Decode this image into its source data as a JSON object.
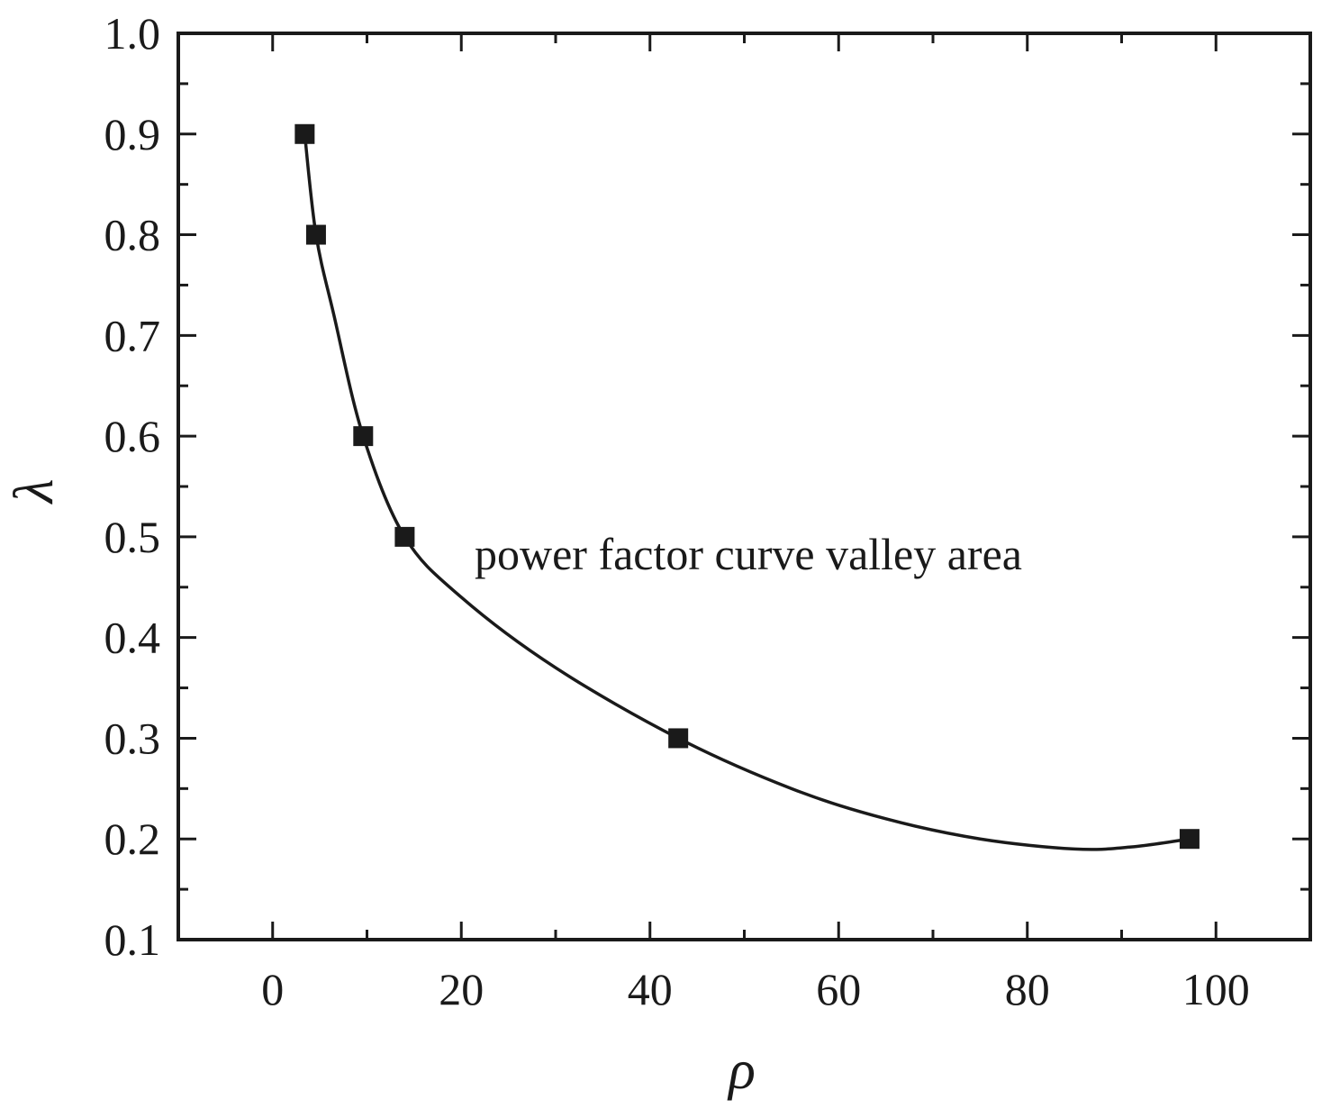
{
  "chart_data": {
    "type": "line",
    "xlabel": "ρ",
    "ylabel": "λ",
    "xlim": [
      -10,
      110
    ],
    "ylim": [
      0.1,
      1.0
    ],
    "xticks": [
      0,
      20,
      40,
      60,
      80,
      100
    ],
    "yticks": [
      0.1,
      0.2,
      0.3,
      0.4,
      0.5,
      0.6,
      0.7,
      0.8,
      0.9,
      1.0
    ],
    "xtick_labels": [
      "0",
      "20",
      "40",
      "60",
      "80",
      "100"
    ],
    "ytick_labels": [
      "0.1",
      "0.2",
      "0.3",
      "0.4",
      "0.5",
      "0.6",
      "0.7",
      "0.8",
      "0.9",
      "1.0"
    ],
    "grid": false,
    "series": [
      {
        "marker": "square",
        "points": [
          {
            "x": 3.4,
            "y": 0.9
          },
          {
            "x": 4.6,
            "y": 0.8
          },
          {
            "x": 9.6,
            "y": 0.6
          },
          {
            "x": 14.0,
            "y": 0.5
          },
          {
            "x": 43.0,
            "y": 0.3
          },
          {
            "x": 97.2,
            "y": 0.2
          }
        ],
        "curve": [
          {
            "x": 3.4,
            "y": 0.9
          },
          {
            "x": 4.6,
            "y": 0.8
          },
          {
            "x": 6.5,
            "y": 0.72
          },
          {
            "x": 9.6,
            "y": 0.6
          },
          {
            "x": 14.0,
            "y": 0.5
          },
          {
            "x": 20.0,
            "y": 0.44
          },
          {
            "x": 30.0,
            "y": 0.37
          },
          {
            "x": 43.0,
            "y": 0.3
          },
          {
            "x": 55.0,
            "y": 0.25
          },
          {
            "x": 65.0,
            "y": 0.22
          },
          {
            "x": 75.0,
            "y": 0.2
          },
          {
            "x": 85.0,
            "y": 0.19
          },
          {
            "x": 91.0,
            "y": 0.192
          },
          {
            "x": 97.2,
            "y": 0.2
          }
        ]
      }
    ],
    "annotations": [
      {
        "text": "power factor curve valley area",
        "x": 22,
        "y": 0.5
      }
    ],
    "colors": {
      "line": "#1a1a1a",
      "marker": "#1a1a1a",
      "axes": "#1a1a1a"
    }
  }
}
